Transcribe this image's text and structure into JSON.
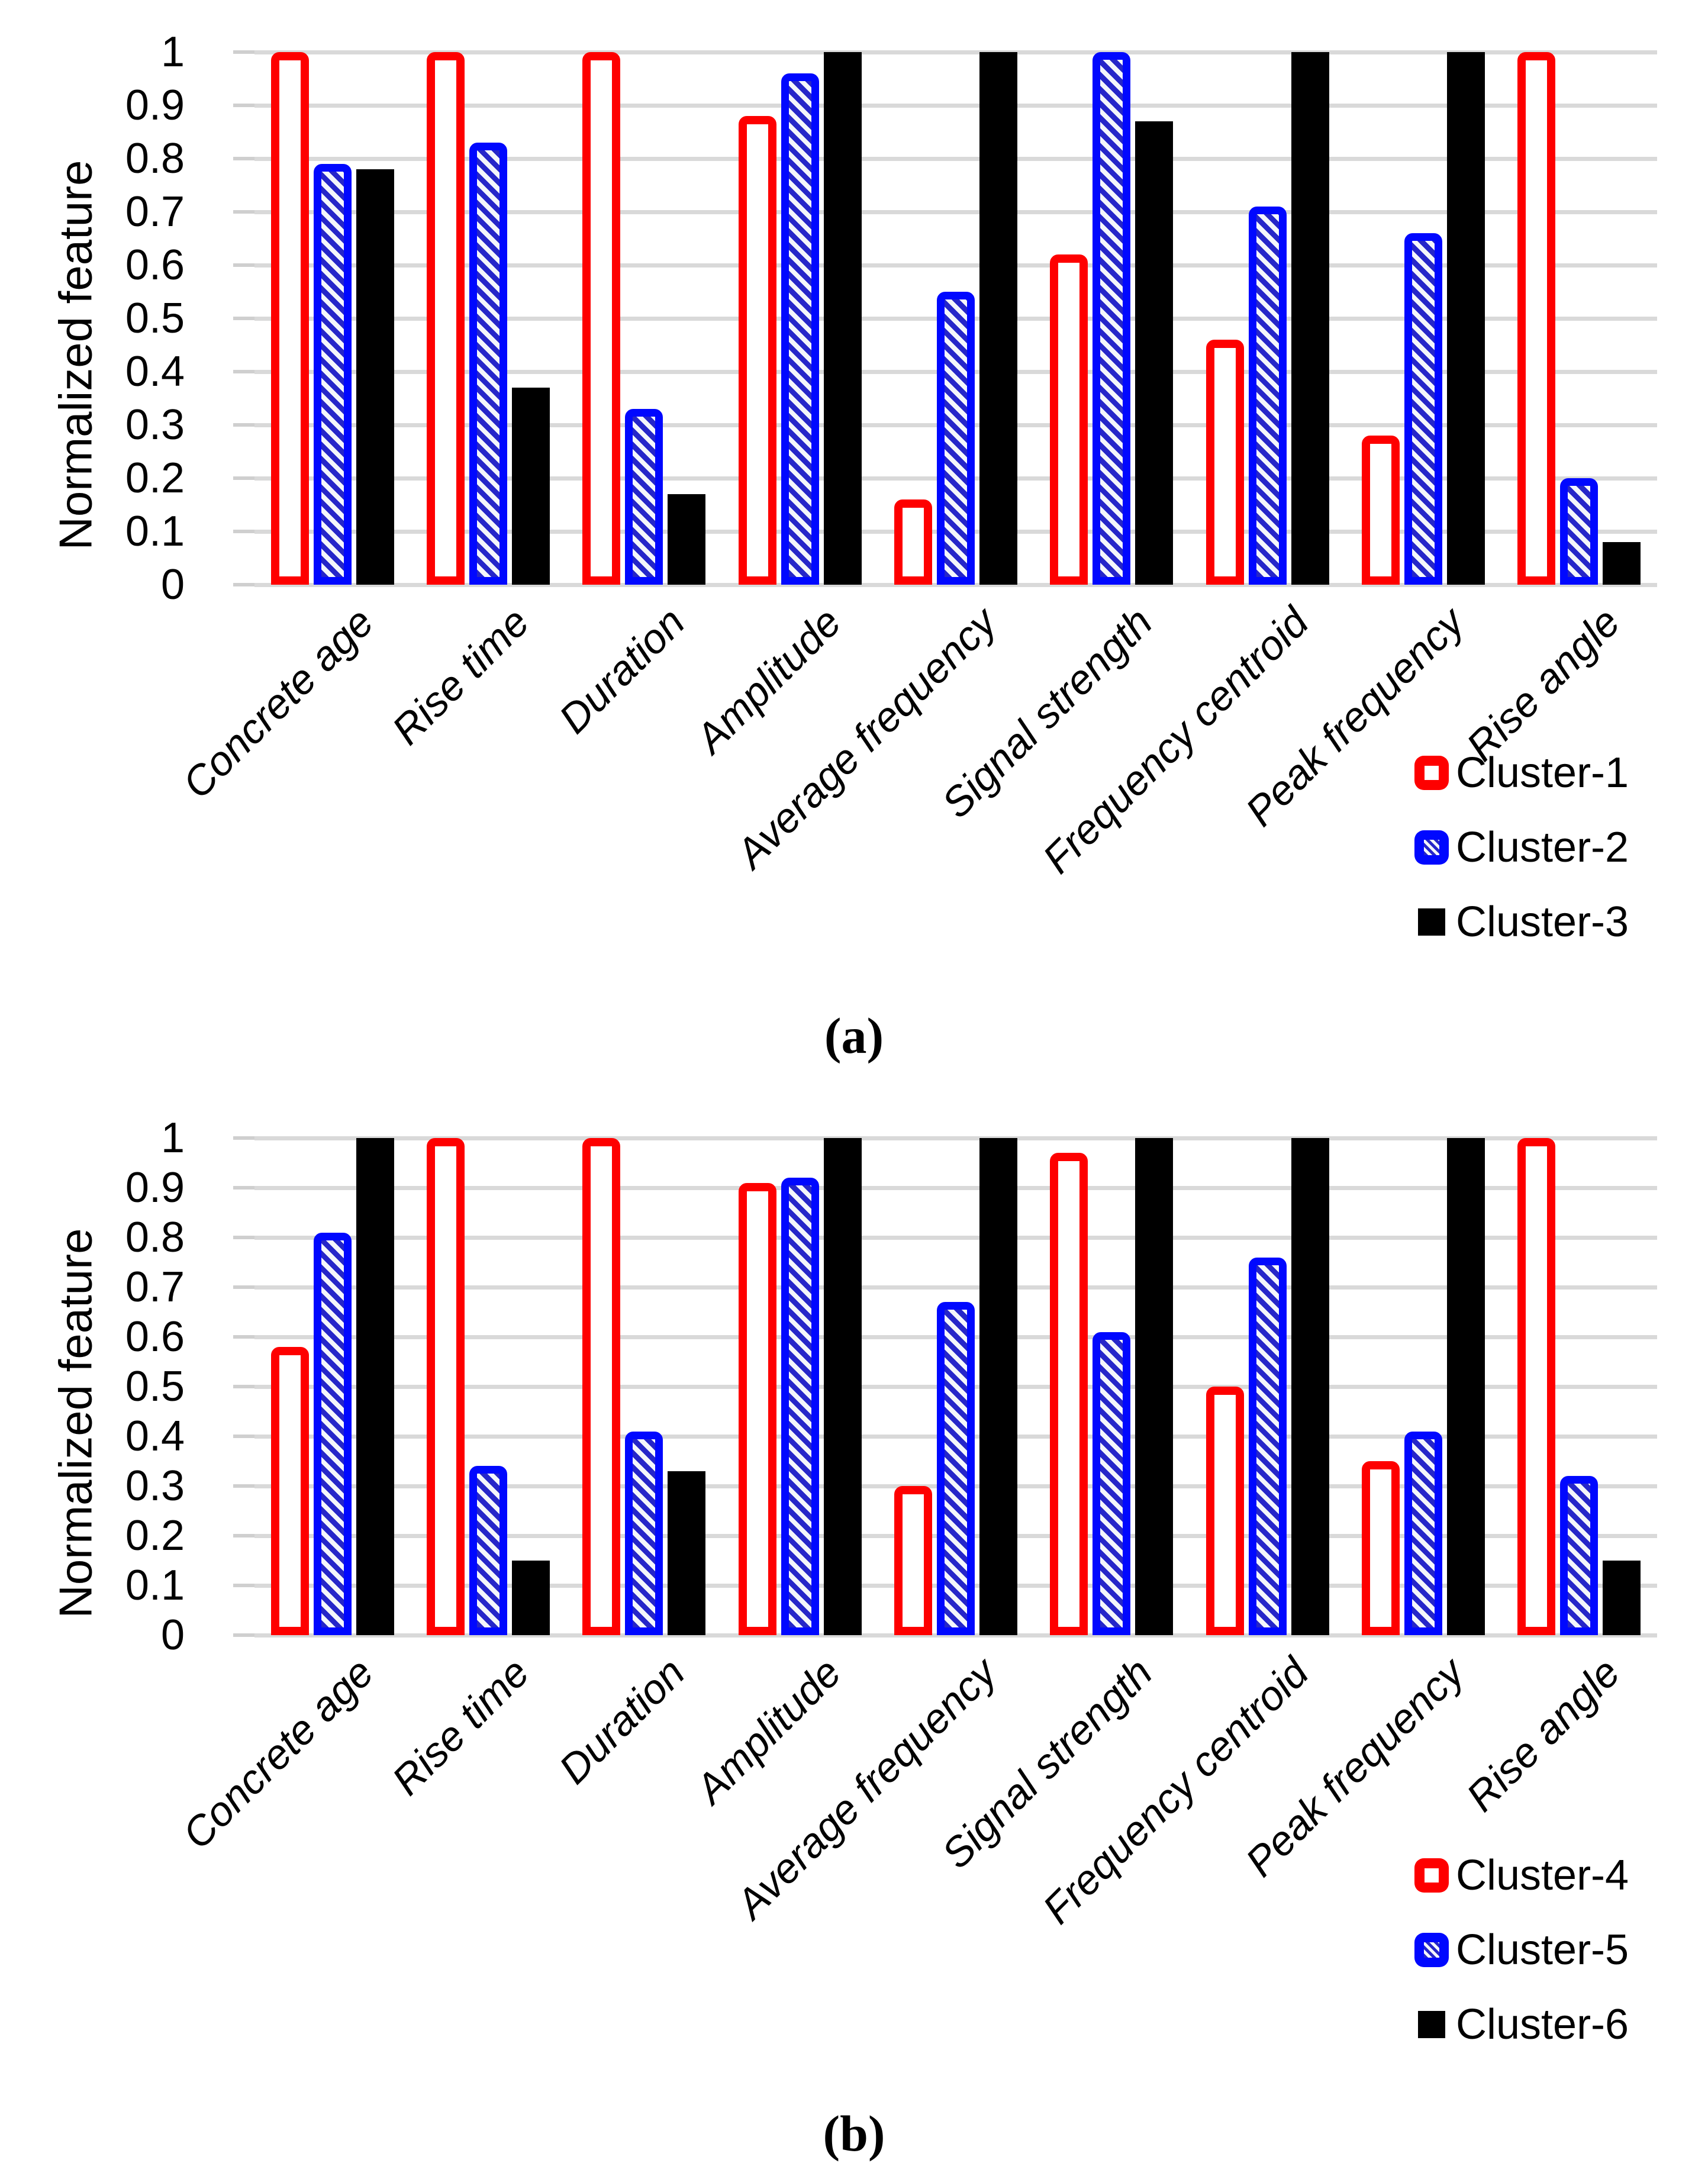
{
  "figure": {
    "background": "#ffffff"
  },
  "colors": {
    "cluster_red": "#fe0000",
    "cluster_blue": "#0008ff",
    "cluster_black": "#000000",
    "gridline": "#d9d9d9"
  },
  "chart_data": [
    {
      "id": "a",
      "type": "bar",
      "title": "",
      "xlabel": "",
      "ylabel": "Normalized feature",
      "ylim": [
        0,
        1
      ],
      "grid": true,
      "legend_position": "bottom-right",
      "caption": "(a)",
      "yticks": [
        "1",
        "0.9",
        "0.8",
        "0.7",
        "0.6",
        "0.5",
        "0.4",
        "0.3",
        "0.2",
        "0.1",
        "0"
      ],
      "categories": [
        "Concrete age",
        "Rise time",
        "Duration",
        "Amplitude",
        "Average frequency",
        "Signal strength",
        "Frequency centroid",
        "Peak frequency",
        "Rise angle"
      ],
      "series": [
        {
          "name": "Cluster-1",
          "style": "red-outline",
          "color": "#fe0000",
          "values": [
            1,
            1,
            1,
            0.88,
            0.16,
            0.62,
            0.46,
            0.28,
            1
          ]
        },
        {
          "name": "Cluster-2",
          "style": "blue-hatch",
          "color": "#0008ff",
          "values": [
            0.79,
            0.83,
            0.33,
            0.96,
            0.55,
            1,
            0.71,
            0.66,
            0.2
          ]
        },
        {
          "name": "Cluster-3",
          "style": "black-solid",
          "color": "#000000",
          "values": [
            0.78,
            0.37,
            0.17,
            1,
            1,
            0.87,
            1,
            1,
            0.08
          ]
        }
      ]
    },
    {
      "id": "b",
      "type": "bar",
      "title": "",
      "xlabel": "",
      "ylabel": "Normalized feature",
      "ylim": [
        0,
        1
      ],
      "grid": true,
      "legend_position": "bottom-right",
      "caption": "(b)",
      "yticks": [
        "1",
        "0.9",
        "0.8",
        "0.7",
        "0.6",
        "0.5",
        "0.4",
        "0.3",
        "0.2",
        "0.1",
        "0"
      ],
      "categories": [
        "Concrete age",
        "Rise time",
        "Duration",
        "Amplitude",
        "Average frequency",
        "Signal strength",
        "Frequency centroid",
        "Peak frequency",
        "Rise angle"
      ],
      "series": [
        {
          "name": "Cluster-4",
          "style": "red-outline",
          "color": "#fe0000",
          "values": [
            0.58,
            1,
            1,
            0.91,
            0.3,
            0.97,
            0.5,
            0.35,
            1
          ]
        },
        {
          "name": "Cluster-5",
          "style": "blue-hatch",
          "color": "#0008ff",
          "values": [
            0.81,
            0.34,
            0.41,
            0.92,
            0.67,
            0.61,
            0.76,
            0.41,
            0.32
          ]
        },
        {
          "name": "Cluster-6",
          "style": "black-solid",
          "color": "#000000",
          "values": [
            1,
            0.15,
            0.33,
            1,
            1,
            1,
            1,
            1,
            0.15
          ]
        }
      ]
    }
  ]
}
